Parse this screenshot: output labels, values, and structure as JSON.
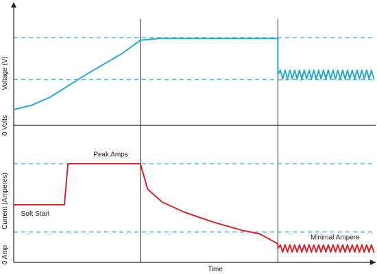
{
  "chart_data": {
    "type": "line",
    "title": "",
    "xlabel": "Time",
    "panels": [
      {
        "name": "voltage",
        "ylabel": "Voltage (V)",
        "baseline_label": "0 Volts",
        "color": "#27a9cf",
        "ylim": [
          0,
          100
        ],
        "reference_levels": [
          100,
          52
        ],
        "series": [
          {
            "values": [
              {
                "x": 0,
                "y": 18
              },
              {
                "x": 5,
                "y": 23
              },
              {
                "x": 10,
                "y": 32
              },
              {
                "x": 15,
                "y": 45
              },
              {
                "x": 20,
                "y": 58
              },
              {
                "x": 25,
                "y": 70
              },
              {
                "x": 30,
                "y": 82
              },
              {
                "x": 35,
                "y": 97
              },
              {
                "x": 40,
                "y": 99
              },
              {
                "x": 73,
                "y": 99
              },
              {
                "x": 73,
                "y": 58
              },
              {
                "x": 100,
                "y": 58
              }
            ],
            "ripple_after": 73,
            "ripple_amplitude": 5
          }
        ]
      },
      {
        "name": "current",
        "ylabel": "Current (Amperes)",
        "baseline_label": "0 Amp",
        "color": "#d8232a",
        "ylim": [
          0,
          100
        ],
        "reference_levels": [
          100,
          25
        ],
        "series": [
          {
            "values": [
              {
                "x": 0,
                "y": 55
              },
              {
                "x": 14,
                "y": 55
              },
              {
                "x": 15,
                "y": 100
              },
              {
                "x": 35,
                "y": 100
              },
              {
                "x": 37,
                "y": 72
              },
              {
                "x": 41,
                "y": 58
              },
              {
                "x": 47,
                "y": 47
              },
              {
                "x": 55,
                "y": 36
              },
              {
                "x": 63,
                "y": 27
              },
              {
                "x": 68,
                "y": 23
              },
              {
                "x": 73,
                "y": 12
              },
              {
                "x": 73,
                "y": 7
              },
              {
                "x": 100,
                "y": 7
              }
            ],
            "ripple_after": 73,
            "ripple_amplitude": 4
          }
        ],
        "annotations": [
          {
            "text": "Peak Amps",
            "x": 22,
            "y": 108
          },
          {
            "text": "Soft Start",
            "x": 2,
            "y": 43
          },
          {
            "text": "Minimal Ampere",
            "x": 82,
            "y": 17
          }
        ]
      }
    ],
    "phase_boundaries": [
      35,
      73
    ],
    "grid": false
  },
  "colors": {
    "axis": "#222222",
    "reference": "#27a9cf"
  }
}
